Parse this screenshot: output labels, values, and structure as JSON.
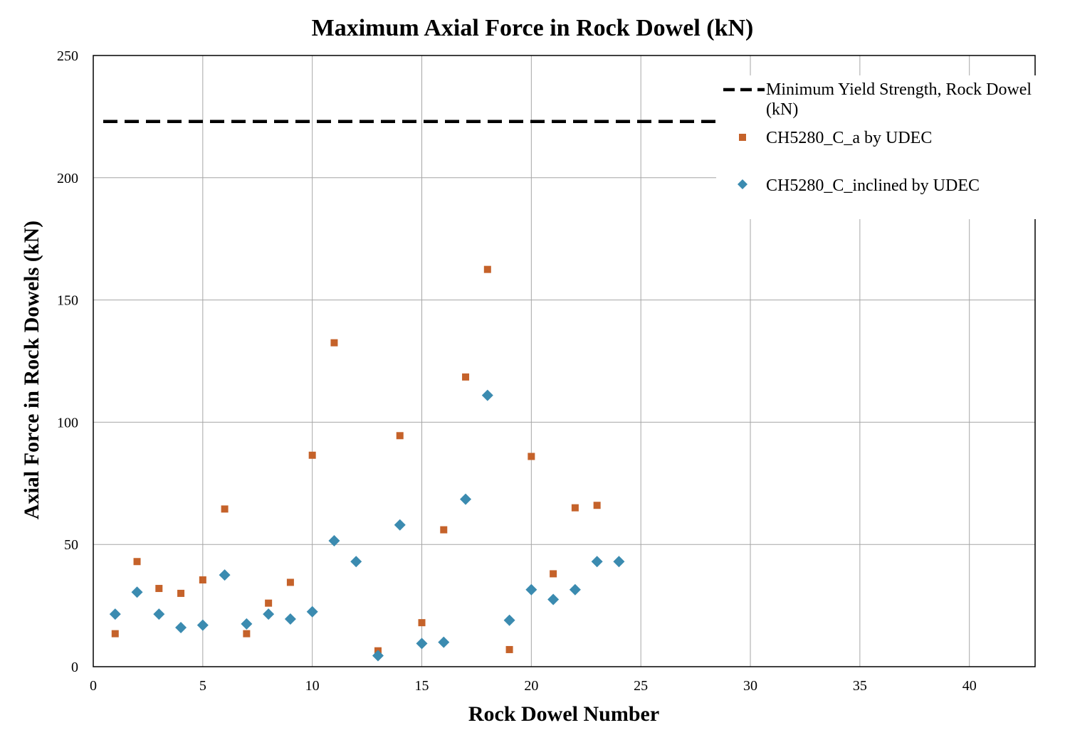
{
  "chart_data": {
    "type": "scatter",
    "title": "Maximum Axial Force in Rock Dowel (kN)",
    "xlabel": "Rock Dowel Number",
    "ylabel": "Axial Force in Rock Dowels (kN)",
    "xlim": [
      0,
      43
    ],
    "ylim": [
      0,
      250
    ],
    "xticks": [
      0,
      5,
      10,
      15,
      20,
      25,
      30,
      35,
      40
    ],
    "yticks": [
      0,
      50,
      100,
      150,
      200,
      250
    ],
    "grid": true,
    "legend_position": "top-right",
    "reference_line": {
      "name_line1": "Minimum Yield Strength, Rock Dowel",
      "name_line2": "(kN)",
      "y": 223,
      "x_range": [
        0,
        28.5
      ],
      "color": "#000000",
      "style": "dashed"
    },
    "series": [
      {
        "name": "CH5280_C_a by UDEC",
        "marker": "square",
        "color": "#C5622A",
        "x": [
          1,
          2,
          3,
          4,
          5,
          6,
          7,
          8,
          9,
          10,
          11,
          12,
          13,
          14,
          15,
          16,
          17,
          18,
          19,
          20,
          21,
          22,
          23
        ],
        "y": [
          13.5,
          43,
          32,
          30,
          35.5,
          64.5,
          13.5,
          26,
          34.5,
          86.5,
          132.5,
          null,
          6.5,
          94.5,
          18,
          56,
          118.5,
          162.5,
          7,
          86,
          38,
          65,
          66
        ]
      },
      {
        "name": "CH5280_C_inclined by UDEC",
        "marker": "diamond",
        "color": "#3B8BB0",
        "x": [
          1,
          2,
          3,
          4,
          5,
          6,
          7,
          8,
          9,
          10,
          11,
          12,
          13,
          14,
          15,
          16,
          17,
          18,
          19,
          20,
          21,
          22,
          23,
          24
        ],
        "y": [
          21.5,
          30.5,
          21.5,
          16,
          17,
          37.5,
          17.5,
          21.5,
          19.5,
          22.5,
          51.5,
          43,
          4.5,
          58,
          9.5,
          10,
          68.5,
          111,
          19,
          31.5,
          27.5,
          31.5,
          43,
          43
        ]
      }
    ]
  }
}
